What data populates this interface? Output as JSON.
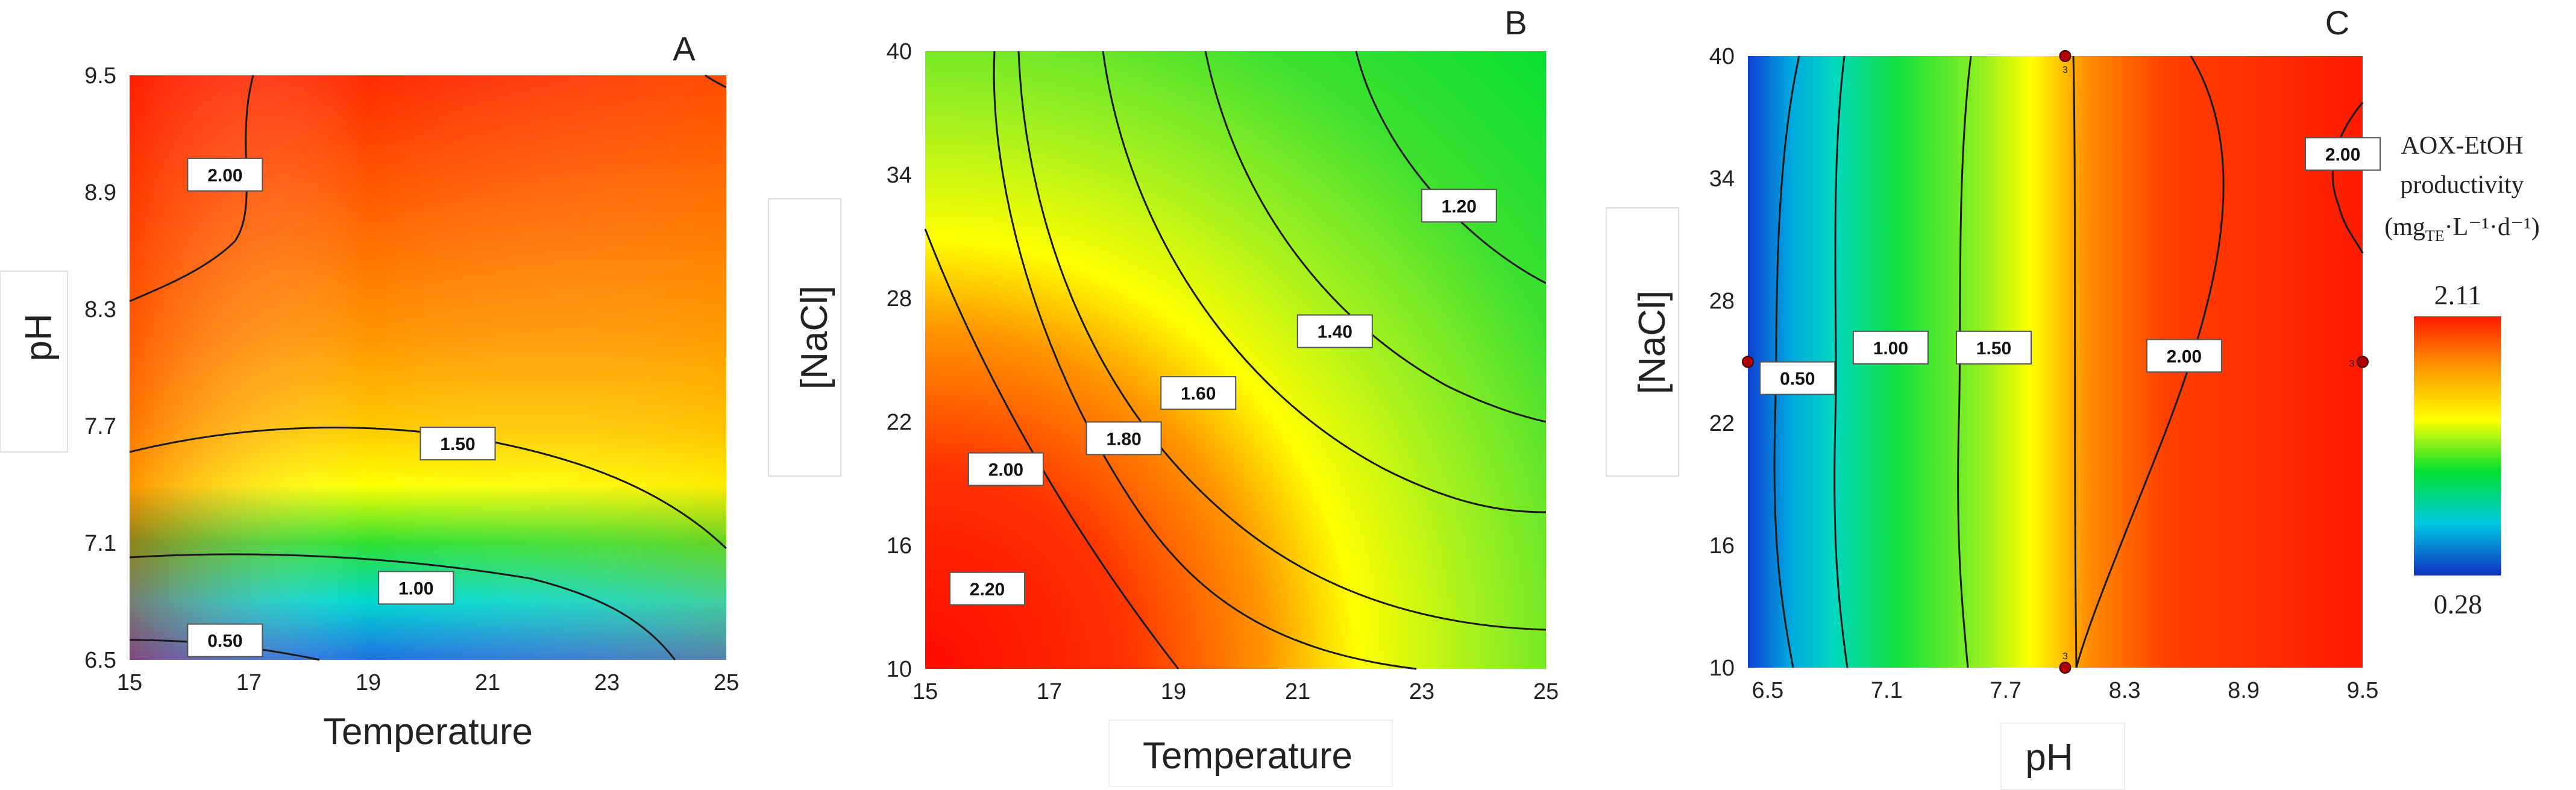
{
  "chart_data": [
    {
      "type": "heatmap",
      "panel": "A",
      "xlabel": "Temperature",
      "ylabel": "pH",
      "xlim": [
        15,
        25
      ],
      "ylim": [
        6.5,
        9.5
      ],
      "xticks": [
        "15",
        "17",
        "19",
        "21",
        "23",
        "25"
      ],
      "yticks": [
        "6.5",
        "7.1",
        "7.7",
        "8.3",
        "8.9",
        "9.5"
      ],
      "contour_labels": [
        {
          "text": "2.00",
          "x": 16.6,
          "y": 8.99
        },
        {
          "text": "1.50",
          "x": 20.5,
          "y": 7.61
        },
        {
          "text": "1.00",
          "x": 19.8,
          "y": 6.87
        },
        {
          "text": "0.50",
          "x": 16.6,
          "y": 6.6
        }
      ]
    },
    {
      "type": "heatmap",
      "panel": "B",
      "xlabel": "Temperature",
      "ylabel": "[NaCl]",
      "xlim": [
        15,
        25
      ],
      "ylim": [
        10,
        40
      ],
      "xticks": [
        "15",
        "17",
        "19",
        "21",
        "23",
        "25"
      ],
      "yticks": [
        "10",
        "16",
        "22",
        "28",
        "34",
        "40"
      ],
      "contour_labels": [
        {
          "text": "1.20",
          "x": 23.6,
          "y": 32.5
        },
        {
          "text": "1.40",
          "x": 21.6,
          "y": 26.4
        },
        {
          "text": "1.60",
          "x": 19.4,
          "y": 23.4
        },
        {
          "text": "1.80",
          "x": 18.2,
          "y": 21.2
        },
        {
          "text": "2.00",
          "x": 16.3,
          "y": 19.7
        },
        {
          "text": "2.20",
          "x": 16.0,
          "y": 13.9
        }
      ]
    },
    {
      "type": "heatmap",
      "panel": "C",
      "xlabel": "pH",
      "ylabel": "[NaCl]",
      "xlim": [
        6.4,
        9.5
      ],
      "ylim": [
        10,
        40
      ],
      "xticks": [
        "6.5",
        "7.1",
        "7.7",
        "8.3",
        "8.9",
        "9.5"
      ],
      "yticks": [
        "10",
        "16",
        "22",
        "28",
        "34",
        "40"
      ],
      "contour_labels": [
        {
          "text": "0.50",
          "x": 6.65,
          "y": 24.2
        },
        {
          "text": "1.00",
          "x": 7.12,
          "y": 25.7
        },
        {
          "text": "1.50",
          "x": 7.64,
          "y": 25.7
        },
        {
          "text": "2.00",
          "x": 8.6,
          "y": 25.3
        },
        {
          "text": "2.00",
          "x": 9.4,
          "y": 35.2
        }
      ],
      "design_points": [
        {
          "x": 8.0,
          "y": 40,
          "label": "3"
        },
        {
          "x": 8.0,
          "y": 10,
          "label": "3"
        },
        {
          "x": 6.4,
          "y": 25,
          "label": ""
        },
        {
          "x": 9.5,
          "y": 25,
          "label": "3"
        }
      ]
    }
  ],
  "legend": {
    "title_line1": "AOX-EtOH",
    "title_line2": "productivity",
    "unit_prefix": "(mg",
    "unit_sub": "TE",
    "unit_suffix": "·L⁻¹·d⁻¹)",
    "max": "2.11",
    "min": "0.28"
  },
  "colors": {
    "red": "#ff1a00",
    "orange": "#ff9900",
    "yellow": "#ffff00",
    "green": "#00e030",
    "cyan": "#00d8e0",
    "blue": "#1040d0",
    "contour": "#1a1a1a",
    "point": "#b00000"
  }
}
